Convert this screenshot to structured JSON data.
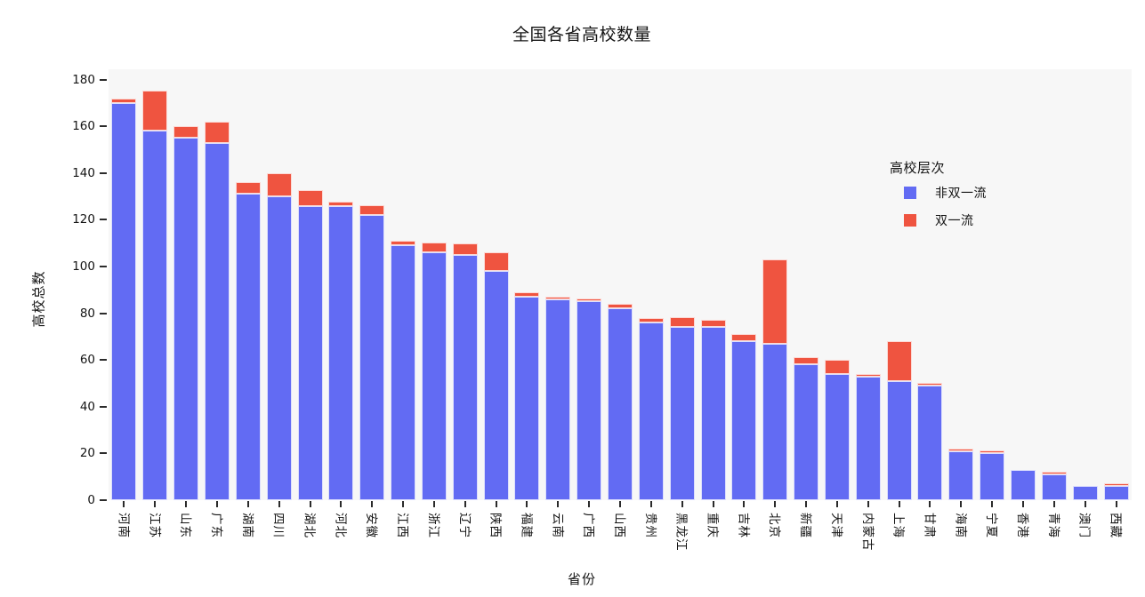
{
  "title": "全国各省高校数量",
  "chart_data": {
    "type": "bar",
    "stacked": true,
    "title": "全国各省高校数量",
    "xlabel": "省份",
    "ylabel": "高校总数",
    "ylim": [
      0,
      185
    ],
    "yticks": [
      0,
      20,
      40,
      60,
      80,
      100,
      120,
      140,
      160,
      180
    ],
    "grid": false,
    "plot_background": "#f7f7f7",
    "legend_title": "高校层次",
    "legend_position": "inside-right",
    "categories": [
      "河南",
      "江苏",
      "山东",
      "广东",
      "湖南",
      "四川",
      "湖北",
      "河北",
      "安徽",
      "江西",
      "浙江",
      "辽宁",
      "陕西",
      "福建",
      "云南",
      "广西",
      "山西",
      "贵州",
      "黑龙江",
      "重庆",
      "吉林",
      "北京",
      "新疆",
      "天津",
      "内蒙古",
      "上海",
      "甘肃",
      "海南",
      "宁夏",
      "香港",
      "青海",
      "澳门",
      "西藏"
    ],
    "series": [
      {
        "name": "非双一流",
        "color": "#626BF3",
        "values": [
          170,
          158,
          155,
          153,
          131,
          130,
          126,
          126,
          122,
          109,
          106,
          105,
          98,
          87,
          86,
          85,
          82,
          76,
          74,
          74,
          68,
          67,
          58,
          54,
          53,
          51,
          49,
          21,
          20,
          13,
          11,
          6,
          6
        ]
      },
      {
        "name": "双一流",
        "color": "#EF5440",
        "values": [
          2,
          17,
          5,
          9,
          5,
          10,
          7,
          2,
          4,
          2,
          4,
          5,
          8,
          2,
          1,
          1,
          2,
          2,
          4,
          3,
          3,
          36,
          3,
          6,
          1,
          17,
          1,
          1,
          1,
          0,
          1,
          0,
          1
        ]
      }
    ]
  }
}
